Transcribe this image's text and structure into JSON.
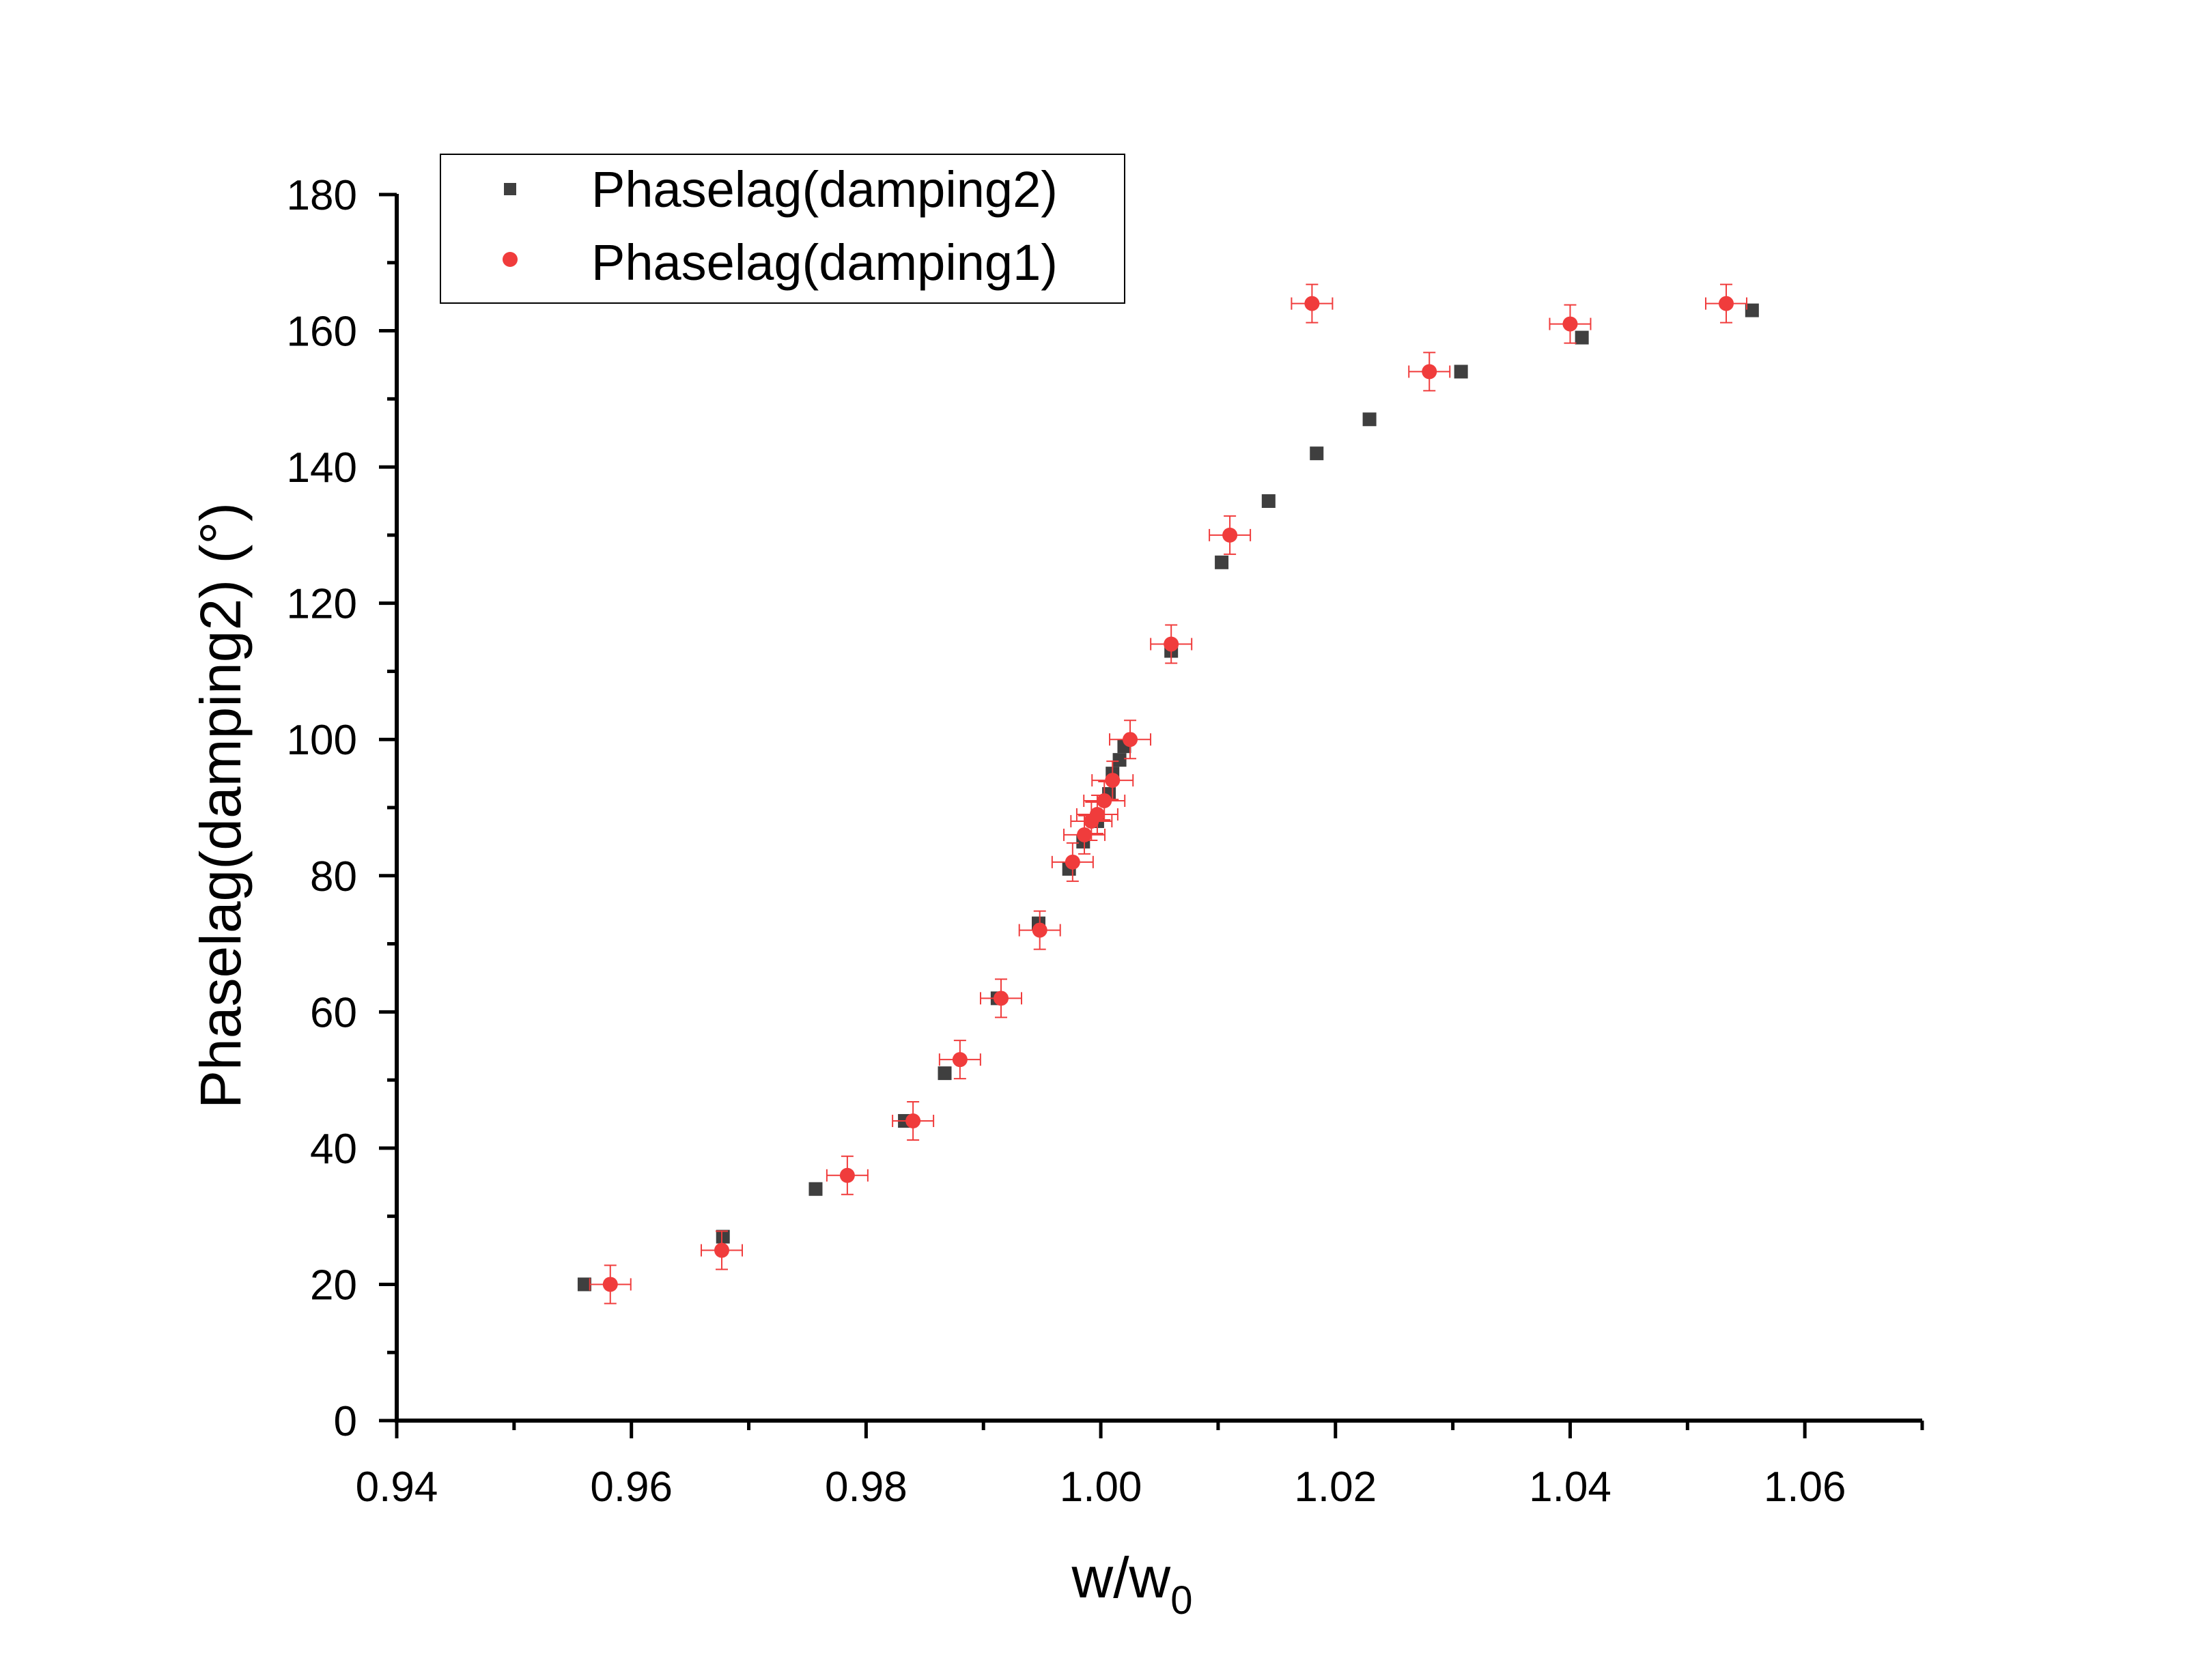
{
  "chart_data": {
    "type": "scatter",
    "xlabel": "w/w",
    "xlabel_subscript": "0",
    "ylabel": "Phaselag(damping2) (°)",
    "xlim": [
      0.94,
      1.07
    ],
    "ylim": [
      0,
      180
    ],
    "x_ticks": [
      0.94,
      0.96,
      0.98,
      1.0,
      1.02,
      1.04,
      1.06
    ],
    "x_tick_labels": [
      "0.94",
      "0.96",
      "0.98",
      "1.00",
      "1.02",
      "1.04",
      "1.06"
    ],
    "y_ticks": [
      0,
      20,
      40,
      60,
      80,
      100,
      120,
      140,
      160,
      180
    ],
    "y_tick_labels": [
      "0",
      "20",
      "40",
      "60",
      "80",
      "100",
      "120",
      "140",
      "160",
      "180"
    ],
    "grid": false,
    "legend_position": "top-left",
    "series": [
      {
        "name": "Phaselag(damping2)",
        "marker": "square",
        "color": "#3f3f3f",
        "error_bars": false,
        "points": [
          [
            0.956,
            20
          ],
          [
            0.9678,
            27
          ],
          [
            0.9757,
            34
          ],
          [
            0.9833,
            44
          ],
          [
            0.9867,
            51
          ],
          [
            0.9912,
            62
          ],
          [
            0.9947,
            73
          ],
          [
            0.9973,
            81
          ],
          [
            0.9985,
            85
          ],
          [
            0.9997,
            88
          ],
          [
            1.0007,
            92
          ],
          [
            1.001,
            95
          ],
          [
            1.0016,
            97
          ],
          [
            1.002,
            99
          ],
          [
            1.006,
            113
          ],
          [
            1.0103,
            126
          ],
          [
            1.0143,
            135
          ],
          [
            1.0184,
            142
          ],
          [
            1.0229,
            147
          ],
          [
            1.0307,
            154
          ],
          [
            1.041,
            159
          ],
          [
            1.0555,
            163
          ]
        ]
      },
      {
        "name": "Phaselag(damping1)",
        "marker": "circle",
        "color": "#f03c3c",
        "error_bars": true,
        "points": [
          [
            0.9582,
            20
          ],
          [
            0.9677,
            25
          ],
          [
            0.9784,
            36
          ],
          [
            0.984,
            44
          ],
          [
            0.988,
            53
          ],
          [
            0.9915,
            62
          ],
          [
            0.9948,
            72
          ],
          [
            0.9976,
            82
          ],
          [
            0.9986,
            86
          ],
          [
            0.9992,
            88
          ],
          [
            0.9997,
            89
          ],
          [
            1.0003,
            91
          ],
          [
            1.001,
            94
          ],
          [
            1.0025,
            100
          ],
          [
            1.006,
            114
          ],
          [
            1.011,
            130
          ],
          [
            1.018,
            164
          ],
          [
            1.028,
            154
          ],
          [
            1.04,
            161
          ],
          [
            1.0533,
            164
          ]
        ]
      }
    ]
  }
}
